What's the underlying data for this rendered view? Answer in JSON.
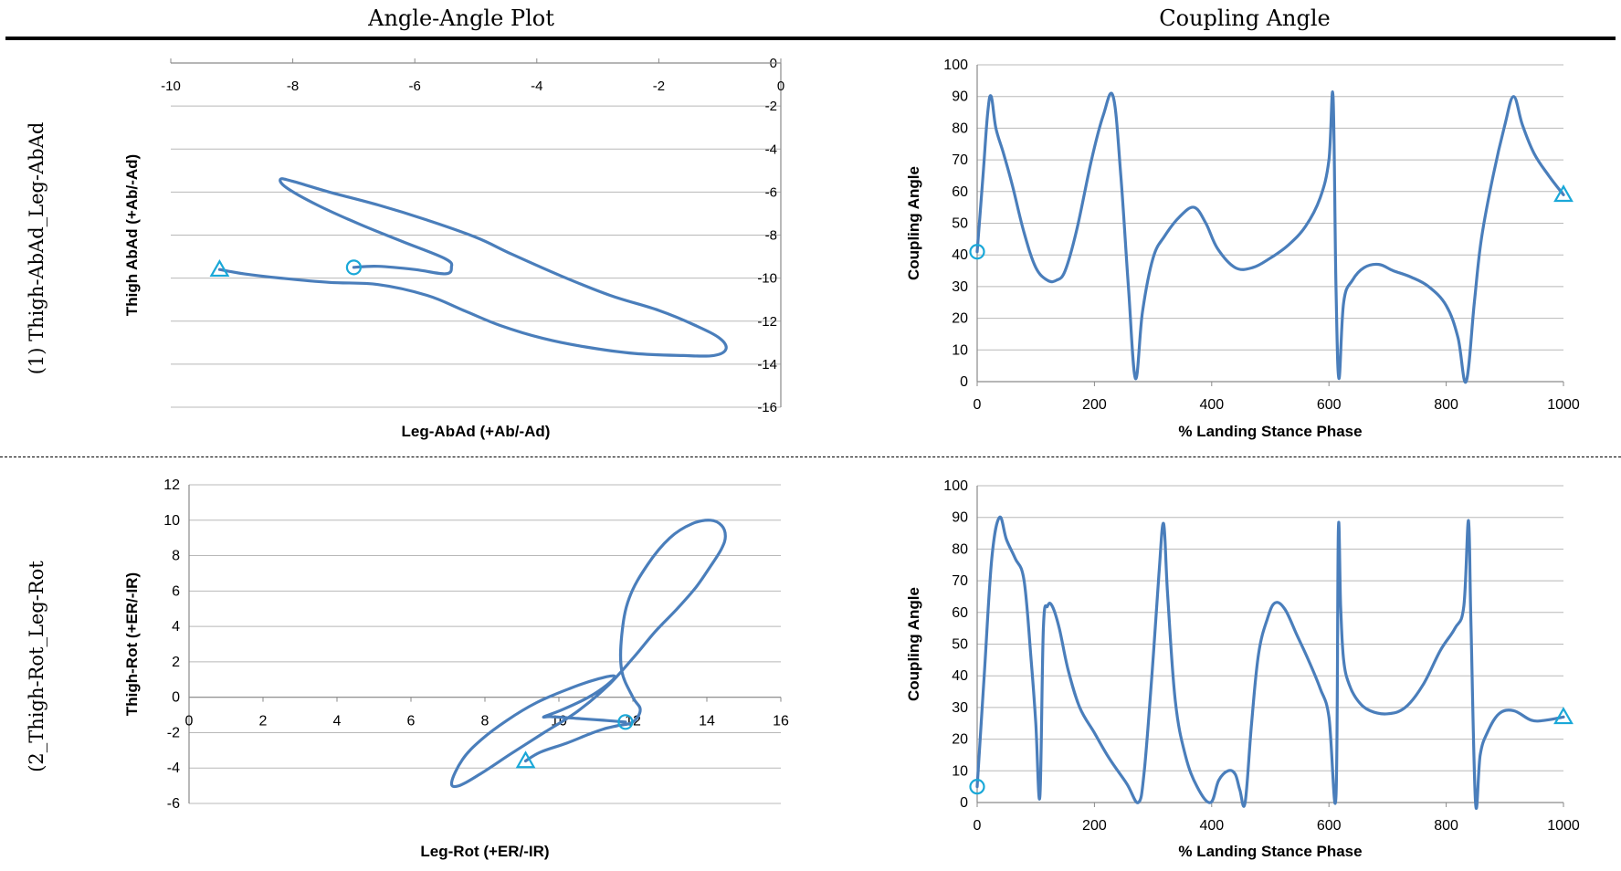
{
  "headers": {
    "left": "Angle-Angle Plot",
    "right": "Coupling Angle"
  },
  "rows": [
    {
      "label": "(1) Thigh-AbAd_Leg-AbAd"
    },
    {
      "label": "(2_Thigh-Rot_Leg-Rot"
    }
  ],
  "colors": {
    "line": "#4a7ebb",
    "marker": "#1aa8d8",
    "grid": "#b8b8b8",
    "axis": "#8a8a8a"
  },
  "chart_data": [
    {
      "id": "aa1",
      "type": "line",
      "title": "",
      "xlabel": "Leg-AbAd (+Ab/-Ad)",
      "ylabel": "Thigh AbAd (+Ab/-Ad)",
      "xlim": [
        -10,
        0
      ],
      "ylim": [
        -16,
        0
      ],
      "xticks": [
        "-10",
        "-8",
        "-6",
        "-4",
        "-2",
        "0"
      ],
      "yticks": [
        "0",
        "-2",
        "-4",
        "-6",
        "-8",
        "-10",
        "-12",
        "-14",
        "-16"
      ],
      "grid": "horizontal",
      "start_marker": "circle",
      "end_marker": "triangle",
      "x": [
        -7,
        -6.6,
        -6.0,
        -5.5,
        -5.4,
        -5.5,
        -6.2,
        -6.9,
        -7.6,
        -8.1,
        -8.2,
        -8.0,
        -7.4,
        -6.6,
        -5.8,
        -5.0,
        -4.4,
        -3.6,
        -2.8,
        -2.0,
        -1.4,
        -1.0,
        -0.9,
        -1.1,
        -1.6,
        -2.4,
        -3.2,
        -3.9,
        -4.6,
        -5.2,
        -5.8,
        -6.6,
        -7.4,
        -8.2,
        -8.8,
        -9.2
      ],
      "y": [
        -9.5,
        -9.45,
        -9.6,
        -9.8,
        -9.5,
        -9.1,
        -8.3,
        -7.5,
        -6.6,
        -5.8,
        -5.4,
        -5.5,
        -6.0,
        -6.6,
        -7.3,
        -8.1,
        -8.9,
        -9.9,
        -10.8,
        -11.5,
        -12.2,
        -12.8,
        -13.3,
        -13.6,
        -13.6,
        -13.5,
        -13.2,
        -12.8,
        -12.2,
        -11.5,
        -10.8,
        -10.3,
        -10.2,
        -10.0,
        -9.8,
        -9.6
      ]
    },
    {
      "id": "ca1",
      "type": "line",
      "title": "",
      "xlabel": "% Landing Stance Phase",
      "ylabel": "Coupling Angle",
      "xlim": [
        0,
        1000
      ],
      "ylim": [
        0,
        100
      ],
      "xticks": [
        "0",
        "200",
        "400",
        "600",
        "800",
        "1000"
      ],
      "yticks": [
        "0",
        "10",
        "20",
        "30",
        "40",
        "50",
        "60",
        "70",
        "80",
        "90",
        "100"
      ],
      "grid": "horizontal",
      "start_marker": "circle",
      "end_marker": "triangle",
      "x": [
        0,
        10,
        18,
        24,
        32,
        45,
        60,
        80,
        100,
        120,
        135,
        150,
        170,
        195,
        215,
        232,
        245,
        258,
        270,
        282,
        300,
        320,
        345,
        370,
        390,
        410,
        440,
        470,
        500,
        530,
        560,
        585,
        600,
        607,
        612,
        617,
        625,
        640,
        660,
        685,
        710,
        740,
        770,
        800,
        820,
        834,
        848,
        860,
        880,
        900,
        915,
        930,
        950,
        975,
        1000
      ],
      "y": [
        41,
        65,
        85,
        90,
        80,
        72,
        62,
        47,
        36,
        32,
        32,
        35,
        48,
        70,
        84,
        90,
        65,
        30,
        1,
        22,
        39,
        46,
        52,
        55,
        50,
        42,
        36,
        36,
        39,
        43,
        49,
        58,
        70,
        90,
        30,
        1,
        25,
        32,
        36,
        37,
        35,
        33,
        30,
        24,
        14,
        0,
        25,
        45,
        65,
        81,
        90,
        81,
        72,
        65,
        59
      ]
    },
    {
      "id": "aa2",
      "type": "line",
      "title": "",
      "xlabel": "Leg-Rot (+ER/-IR)",
      "ylabel": "Thigh-Rot (+ER/-IR)",
      "xlim": [
        0,
        16
      ],
      "ylim": [
        -6,
        12
      ],
      "xticks": [
        "0",
        "2",
        "4",
        "6",
        "8",
        "10",
        "12",
        "14",
        "16"
      ],
      "yticks": [
        "12",
        "10",
        "8",
        "6",
        "4",
        "2",
        "0",
        "-2",
        "-4",
        "-6"
      ],
      "grid": "horizontal",
      "start_marker": "circle",
      "end_marker": "triangle",
      "x": [
        11.8,
        11.2,
        10.5,
        9.8,
        9.6,
        10.1,
        10.8,
        11.3,
        11.5,
        11.0,
        10.3,
        9.4,
        8.6,
        7.9,
        7.4,
        7.1,
        7.3,
        7.9,
        8.7,
        9.6,
        10.5,
        11.3,
        12.0,
        12.6,
        13.2,
        13.7,
        14.1,
        14.4,
        14.5,
        14.4,
        14.1,
        13.6,
        13.0,
        12.4,
        11.9,
        11.7,
        11.7,
        12.0,
        12.2,
        12.0,
        11.6,
        11.2,
        10.8,
        10.2,
        9.5,
        9.1
      ],
      "y": [
        -1.4,
        -1.3,
        -1.2,
        -1.1,
        -1.1,
        -0.7,
        0.0,
        0.7,
        1.2,
        1.0,
        0.5,
        -0.3,
        -1.3,
        -2.4,
        -3.5,
        -4.8,
        -5.0,
        -4.3,
        -3.2,
        -2.0,
        -0.8,
        0.6,
        2.2,
        3.7,
        5.0,
        6.2,
        7.4,
        8.4,
        9.1,
        9.7,
        10.0,
        9.8,
        9.0,
        7.5,
        5.6,
        3.5,
        1.5,
        0.0,
        -0.7,
        -1.4,
        -1.6,
        -1.8,
        -2.1,
        -2.6,
        -3.1,
        -3.6
      ]
    },
    {
      "id": "ca2",
      "type": "line",
      "title": "",
      "xlabel": "% Landing Stance Phase",
      "ylabel": "Coupling Angle",
      "xlim": [
        0,
        1000
      ],
      "ylim": [
        0,
        100
      ],
      "xticks": [
        "0",
        "200",
        "400",
        "600",
        "800",
        "1000"
      ],
      "yticks": [
        "0",
        "10",
        "20",
        "30",
        "40",
        "50",
        "60",
        "70",
        "80",
        "90",
        "100"
      ],
      "grid": "horizontal",
      "start_marker": "circle",
      "end_marker": "triangle",
      "x": [
        0,
        12,
        25,
        38,
        50,
        65,
        80,
        92,
        100,
        107,
        113,
        120,
        128,
        140,
        155,
        175,
        200,
        225,
        255,
        275,
        285,
        298,
        310,
        318,
        325,
        338,
        355,
        375,
        398,
        412,
        428,
        440,
        448,
        457,
        468,
        480,
        495,
        508,
        525,
        545,
        565,
        585,
        600,
        612,
        616,
        620,
        625,
        635,
        650,
        670,
        700,
        730,
        760,
        790,
        815,
        830,
        838,
        842,
        850,
        858,
        870,
        890,
        915,
        945,
        970,
        1000
      ],
      "y": [
        5,
        40,
        77,
        90,
        83,
        77,
        70,
        45,
        25,
        2,
        55,
        62,
        62,
        55,
        42,
        30,
        22,
        14,
        6,
        0,
        10,
        40,
        72,
        88,
        65,
        32,
        15,
        5,
        0,
        7,
        10,
        9,
        4,
        0,
        25,
        47,
        58,
        63,
        61,
        53,
        45,
        36,
        27,
        2,
        86,
        62,
        45,
        37,
        32,
        29,
        28,
        30,
        37,
        48,
        55,
        62,
        89,
        58,
        0,
        15,
        22,
        28,
        29,
        26,
        26,
        27
      ]
    }
  ]
}
